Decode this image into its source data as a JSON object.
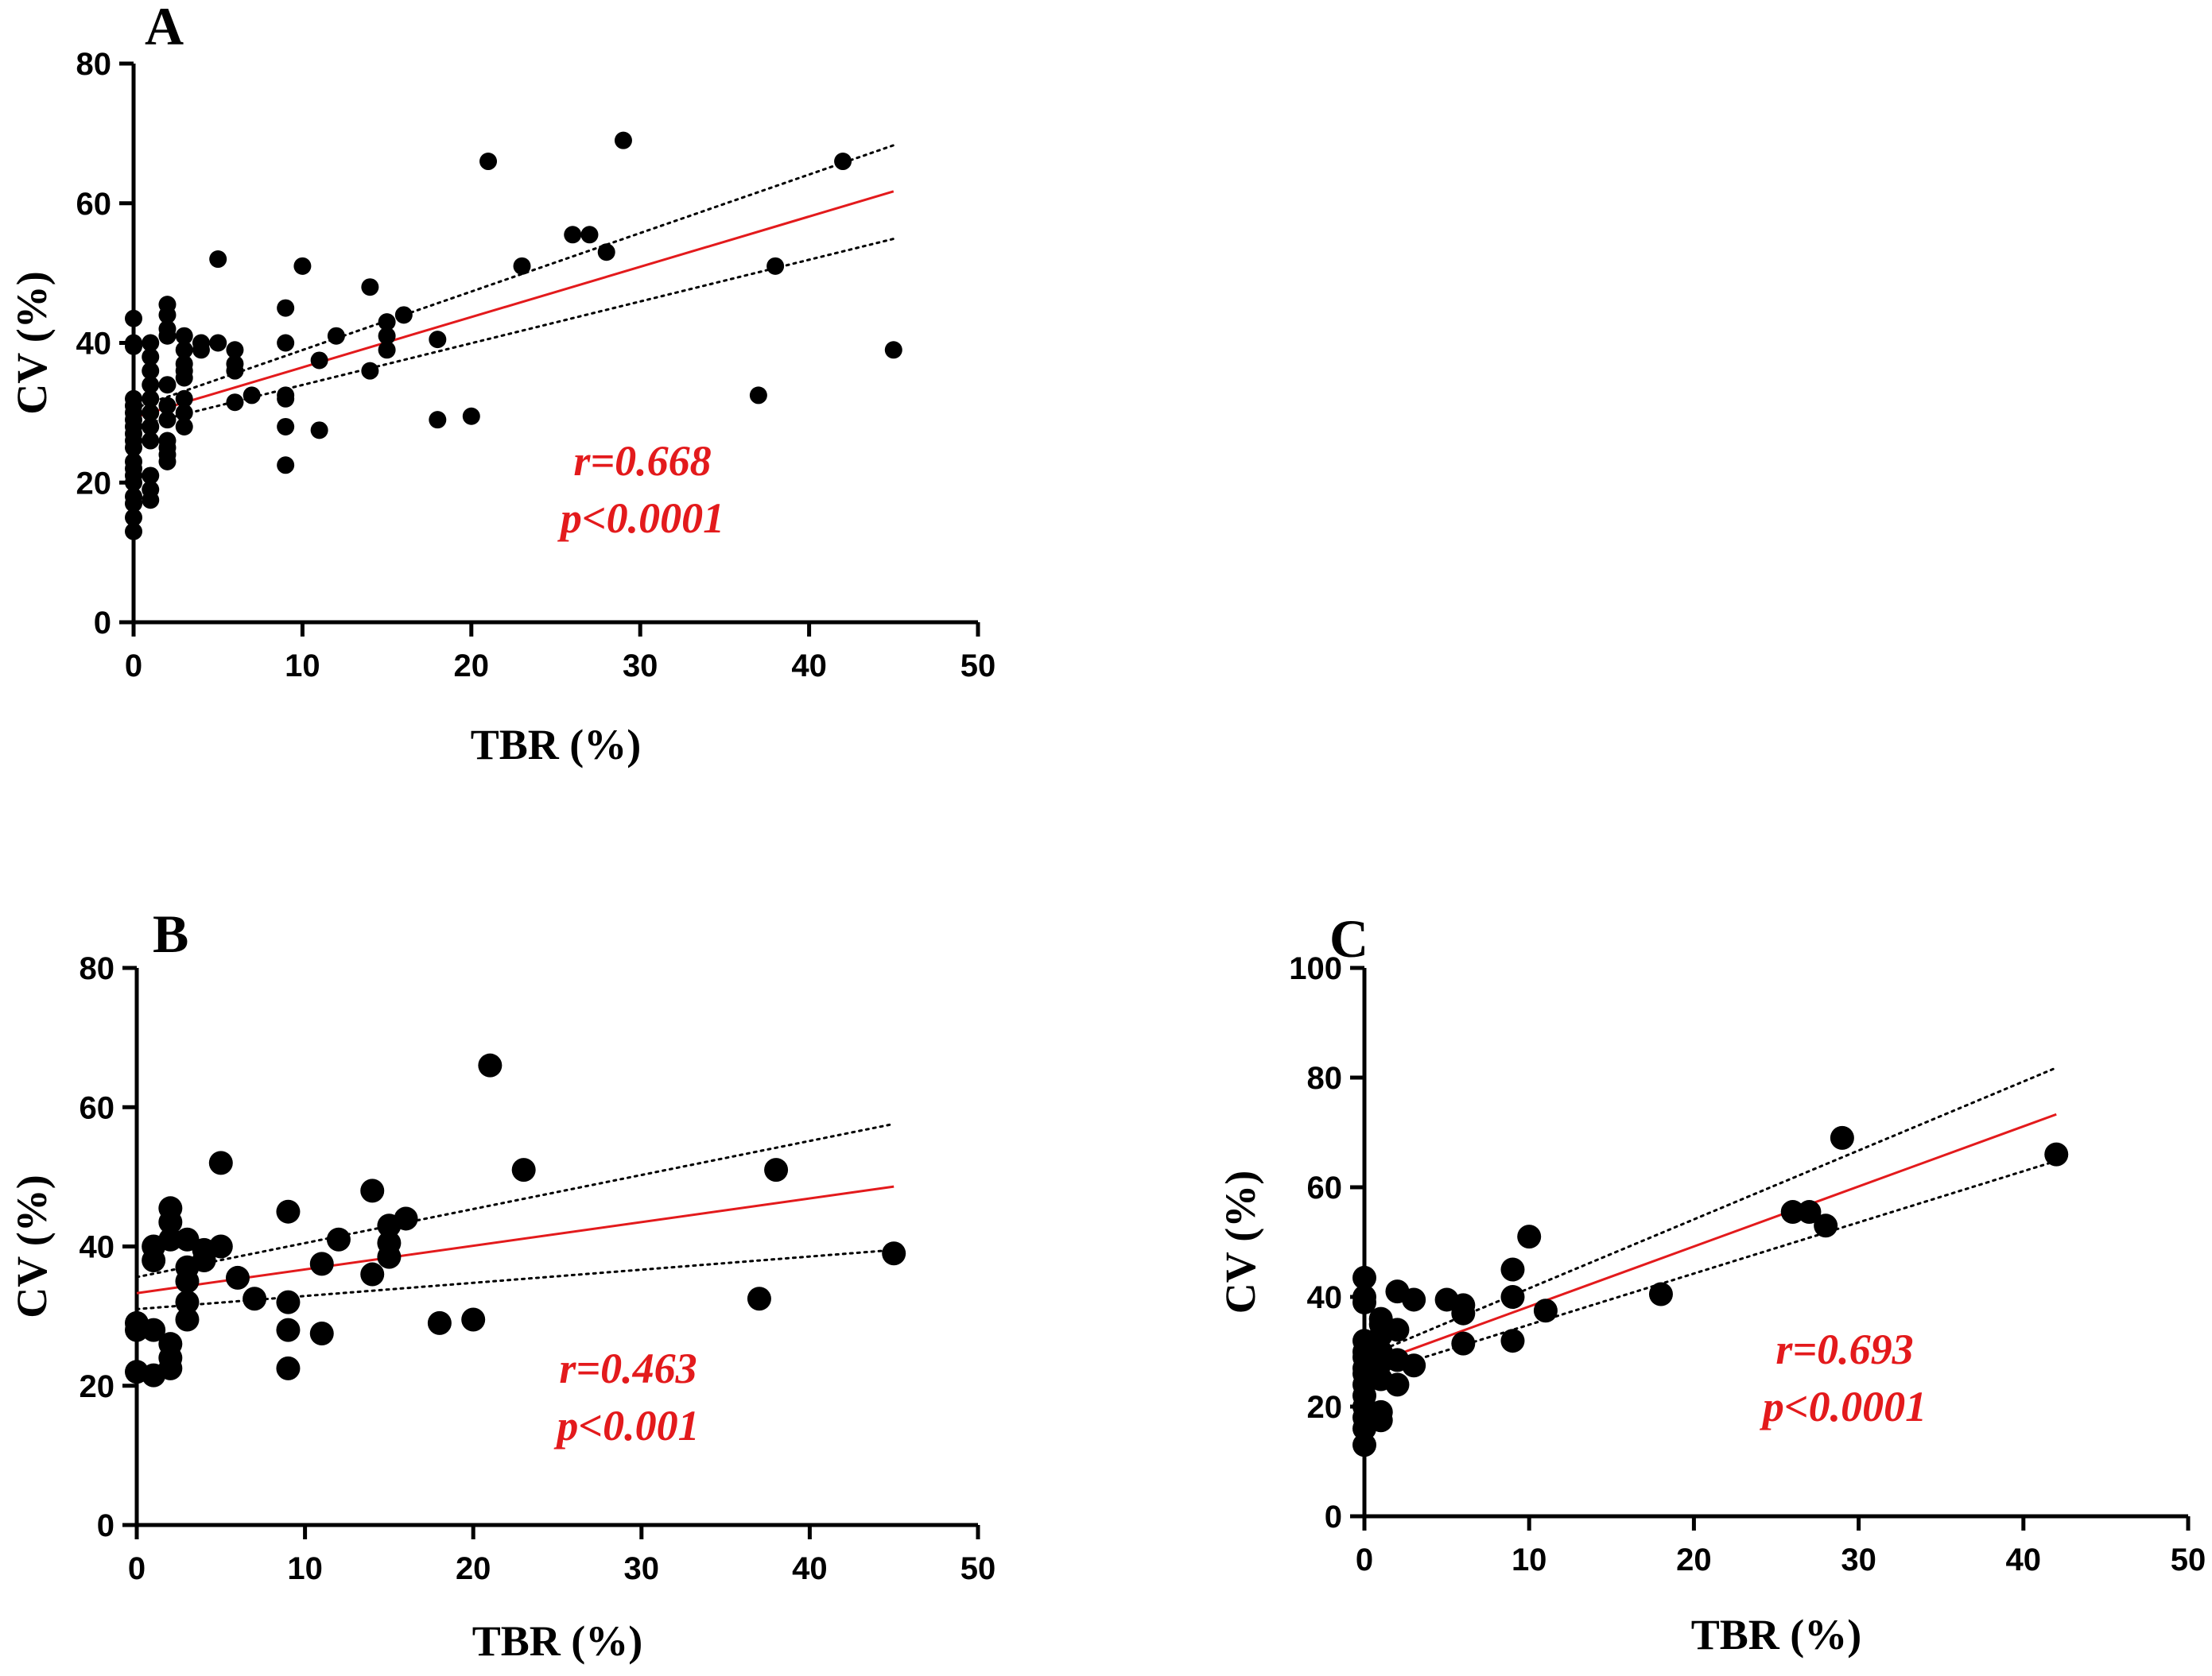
{
  "colors": {
    "axis": "#000000",
    "points": "#000000",
    "fit_line": "#e31a1c",
    "stat_text": "#e31a1c"
  },
  "chart_data": [
    {
      "type": "scatter",
      "panel": "A",
      "xlabel": "TBR (%)",
      "ylabel": "CV (%)",
      "xlim": [
        0,
        50
      ],
      "ylim": [
        0,
        80
      ],
      "xticks": [
        0,
        10,
        20,
        30,
        40,
        50
      ],
      "yticks": [
        0,
        20,
        40,
        60,
        80
      ],
      "fit": {
        "x": [
          0,
          45
        ],
        "y": [
          29.3,
          61.7
        ]
      },
      "ci_upper": {
        "x": [
          0,
          45
        ],
        "y": [
          30.6,
          68.3
        ]
      },
      "ci_lower": {
        "x": [
          0,
          45
        ],
        "y": [
          28.0,
          54.9
        ]
      },
      "stats": {
        "r": "r=0.668",
        "p": "p<0.0001"
      },
      "points": [
        [
          0,
          13
        ],
        [
          0,
          15
        ],
        [
          0,
          17
        ],
        [
          0,
          18
        ],
        [
          0,
          20
        ],
        [
          0,
          21
        ],
        [
          0,
          22
        ],
        [
          0,
          23
        ],
        [
          0,
          25
        ],
        [
          0,
          26
        ],
        [
          0,
          27
        ],
        [
          0,
          28
        ],
        [
          0,
          29
        ],
        [
          0,
          30
        ],
        [
          0,
          31
        ],
        [
          0,
          32
        ],
        [
          0,
          39.5
        ],
        [
          0,
          40
        ],
        [
          0,
          43.5
        ],
        [
          1,
          17.5
        ],
        [
          1,
          19
        ],
        [
          1,
          21
        ],
        [
          1,
          26
        ],
        [
          1,
          28
        ],
        [
          1,
          30
        ],
        [
          1,
          32
        ],
        [
          1,
          34
        ],
        [
          1,
          36
        ],
        [
          1,
          38
        ],
        [
          1,
          40
        ],
        [
          2,
          23
        ],
        [
          2,
          24
        ],
        [
          2,
          25
        ],
        [
          2,
          26
        ],
        [
          2,
          29
        ],
        [
          2,
          31
        ],
        [
          2,
          34
        ],
        [
          2,
          41
        ],
        [
          2,
          42
        ],
        [
          2,
          44
        ],
        [
          2,
          45.5
        ],
        [
          3,
          28
        ],
        [
          3,
          30
        ],
        [
          3,
          32
        ],
        [
          3,
          35
        ],
        [
          3,
          36
        ],
        [
          3,
          37
        ],
        [
          3,
          39
        ],
        [
          3,
          41
        ],
        [
          4,
          39
        ],
        [
          4,
          40
        ],
        [
          5,
          40
        ],
        [
          5,
          52
        ],
        [
          6,
          31.5
        ],
        [
          6,
          36
        ],
        [
          6,
          37
        ],
        [
          6,
          39
        ],
        [
          7,
          32.5
        ],
        [
          9,
          22.5
        ],
        [
          9,
          28
        ],
        [
          9,
          32
        ],
        [
          9,
          32.5
        ],
        [
          9,
          40
        ],
        [
          9,
          45
        ],
        [
          10,
          51
        ],
        [
          11,
          27.5
        ],
        [
          11,
          37.5
        ],
        [
          12,
          41
        ],
        [
          14,
          36
        ],
        [
          14,
          48
        ],
        [
          15,
          39
        ],
        [
          15,
          41
        ],
        [
          15,
          43
        ],
        [
          16,
          44
        ],
        [
          18,
          29
        ],
        [
          18,
          40.5
        ],
        [
          20,
          29.5
        ],
        [
          21,
          66
        ],
        [
          23,
          51
        ],
        [
          26,
          55.5
        ],
        [
          27,
          55.5
        ],
        [
          28,
          53
        ],
        [
          29,
          69
        ],
        [
          37,
          32.5
        ],
        [
          38,
          51
        ],
        [
          42,
          66
        ],
        [
          45,
          39
        ]
      ]
    },
    {
      "type": "scatter",
      "panel": "B",
      "xlabel": "TBR (%)",
      "ylabel": "CV (%)",
      "xlim": [
        0,
        50
      ],
      "ylim": [
        0,
        80
      ],
      "xticks": [
        0,
        10,
        20,
        30,
        40,
        50
      ],
      "yticks": [
        0,
        20,
        40,
        60,
        80
      ],
      "fit": {
        "x": [
          0,
          45
        ],
        "y": [
          33.3,
          48.6
        ]
      },
      "ci_upper": {
        "x": [
          0,
          45
        ],
        "y": [
          35.6,
          57.6
        ]
      },
      "ci_lower": {
        "x": [
          0,
          45
        ],
        "y": [
          31.0,
          39.5
        ]
      },
      "stats": {
        "r": "r=0.463",
        "p": "p<0.001"
      },
      "points": [
        [
          0,
          22
        ],
        [
          0,
          28
        ],
        [
          0,
          29
        ],
        [
          1,
          21.5
        ],
        [
          1,
          28
        ],
        [
          1,
          38
        ],
        [
          1,
          40
        ],
        [
          2,
          22.5
        ],
        [
          2,
          24
        ],
        [
          2,
          26
        ],
        [
          2,
          41
        ],
        [
          2,
          43.5
        ],
        [
          2,
          45.5
        ],
        [
          3,
          29.5
        ],
        [
          3,
          32
        ],
        [
          3,
          35
        ],
        [
          3,
          37
        ],
        [
          3,
          41
        ],
        [
          4,
          38
        ],
        [
          4,
          39.5
        ],
        [
          5,
          40
        ],
        [
          5,
          52
        ],
        [
          6,
          35.5
        ],
        [
          7,
          32.5
        ],
        [
          9,
          22.5
        ],
        [
          9,
          28
        ],
        [
          9,
          32
        ],
        [
          9,
          45
        ],
        [
          11,
          27.5
        ],
        [
          11,
          37.5
        ],
        [
          12,
          41
        ],
        [
          14,
          36
        ],
        [
          14,
          48
        ],
        [
          15,
          38.5
        ],
        [
          15,
          40.5
        ],
        [
          15,
          43
        ],
        [
          16,
          44
        ],
        [
          18,
          29
        ],
        [
          20,
          29.5
        ],
        [
          21,
          66
        ],
        [
          23,
          51
        ],
        [
          37,
          32.5
        ],
        [
          38,
          51
        ],
        [
          45,
          39
        ]
      ]
    },
    {
      "type": "scatter",
      "panel": "C",
      "xlabel": "TBR (%)",
      "ylabel": "CV (%)",
      "xlim": [
        0,
        50
      ],
      "ylim": [
        0,
        100
      ],
      "xticks": [
        0,
        10,
        20,
        30,
        40,
        50
      ],
      "yticks": [
        0,
        20,
        40,
        60,
        80,
        100
      ],
      "fit": {
        "x": [
          0,
          42
        ],
        "y": [
          27.3,
          73.3
        ]
      },
      "ci_upper": {
        "x": [
          0,
          42
        ],
        "y": [
          29.0,
          81.8
        ]
      },
      "ci_lower": {
        "x": [
          0,
          42
        ],
        "y": [
          25.6,
          64.8
        ]
      },
      "stats": {
        "r": "r=0.693",
        "p": "p<0.0001"
      },
      "points": [
        [
          0,
          13
        ],
        [
          0,
          16
        ],
        [
          0,
          18
        ],
        [
          0,
          20
        ],
        [
          0,
          22
        ],
        [
          0,
          24
        ],
        [
          0,
          26
        ],
        [
          0,
          27
        ],
        [
          0,
          29
        ],
        [
          0,
          30
        ],
        [
          0,
          32
        ],
        [
          0,
          39
        ],
        [
          0,
          40
        ],
        [
          0,
          43.5
        ],
        [
          1,
          17.5
        ],
        [
          1,
          19
        ],
        [
          1,
          25
        ],
        [
          1,
          28
        ],
        [
          1,
          30
        ],
        [
          1,
          33
        ],
        [
          1,
          35
        ],
        [
          1,
          36
        ],
        [
          2,
          24
        ],
        [
          2,
          28.5
        ],
        [
          2,
          34
        ],
        [
          2,
          41
        ],
        [
          3,
          27.5
        ],
        [
          3,
          39.5
        ],
        [
          5,
          39.5
        ],
        [
          6,
          31.5
        ],
        [
          6,
          37
        ],
        [
          6,
          38.5
        ],
        [
          9,
          32
        ],
        [
          9,
          40
        ],
        [
          9,
          45
        ],
        [
          10,
          51
        ],
        [
          11,
          37.5
        ],
        [
          18,
          40.5
        ],
        [
          26,
          55.5
        ],
        [
          27,
          55.5
        ],
        [
          28,
          53
        ],
        [
          29,
          69
        ],
        [
          42,
          66
        ]
      ]
    }
  ]
}
